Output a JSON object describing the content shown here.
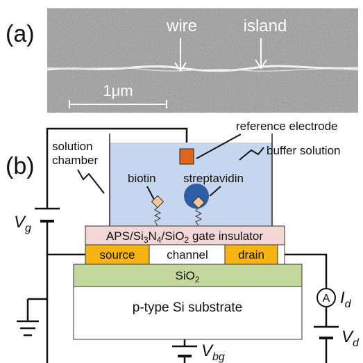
{
  "panel_a": {
    "label": "(a)",
    "wire": "wire",
    "island": "island",
    "scale_bar": "1μm"
  },
  "panel_b": {
    "label": "(b)",
    "reference_electrode": "reference electrode",
    "solution_chamber": [
      "solution",
      "chamber"
    ],
    "buffer_solution": "buffer solution",
    "biotin": "biotin",
    "streptavidin": "streptavidin",
    "gate_voltage": {
      "symbol": "V",
      "subscript": "g"
    },
    "gate_insulator": [
      "APS/Si",
      "3",
      "N",
      "4",
      "/SiO",
      "2",
      " gate insulator"
    ],
    "source": "source",
    "channel": "channel",
    "drain": "drain",
    "oxide": [
      "SiO",
      "2"
    ],
    "substrate": "p-type Si substrate",
    "ammeter": "A",
    "drain_current": {
      "symbol": "I",
      "subscript": "d"
    },
    "back_gate_voltage": {
      "symbol": "V",
      "subscript": "bg"
    },
    "drain_voltage": {
      "symbol": "V",
      "subscript": "d"
    }
  }
}
